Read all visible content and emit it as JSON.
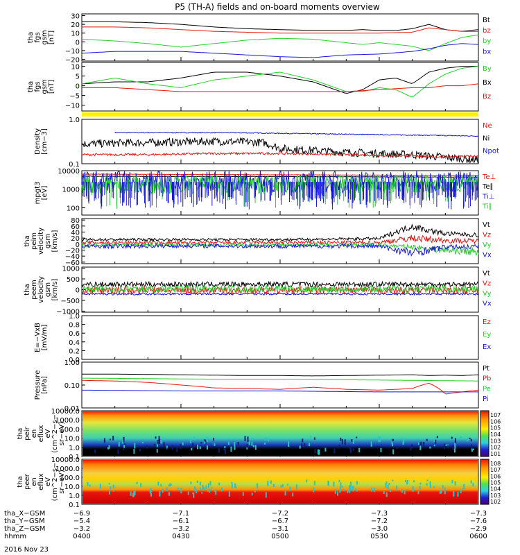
{
  "title": "P5 (TH-A) fields and on-board moments overview",
  "footer_date": "2016 Nov 23",
  "colors": {
    "black": "#000000",
    "red": "#e8150f",
    "green": "#22d02a",
    "blue": "#1515d8",
    "yellow": "#fff200"
  },
  "chart_data": [
    {
      "type": "line",
      "panel": 1,
      "ylabel": [
        "tha",
        "fgs",
        "gsm",
        "[nT]"
      ],
      "yticks": [
        "30",
        "20",
        "10",
        "0",
        "−10",
        "−20"
      ],
      "ylim": [
        -22,
        32
      ],
      "legend": [
        {
          "label": "Bt",
          "color": "black"
        },
        {
          "label": "bz",
          "color": "red"
        },
        {
          "label": "by",
          "color": "green"
        },
        {
          "label": "bx",
          "color": "blue"
        }
      ],
      "series": [
        {
          "name": "Bt",
          "color": "black",
          "x": [
            0,
            10,
            20,
            30,
            40,
            50,
            60,
            70,
            80,
            85,
            90,
            95,
            100,
            105,
            110,
            115,
            120
          ],
          "y": [
            23,
            23,
            22,
            20,
            17,
            15,
            14,
            13,
            13,
            14,
            13,
            13,
            15,
            20,
            14,
            12,
            14
          ]
        },
        {
          "name": "bz",
          "color": "red",
          "x": [
            0,
            10,
            20,
            30,
            40,
            50,
            60,
            70,
            80,
            90,
            100,
            105,
            110,
            115,
            120
          ],
          "y": [
            17,
            17,
            16,
            14,
            12,
            11,
            10,
            10,
            10,
            10,
            11,
            16,
            14,
            12,
            12
          ]
        },
        {
          "name": "by",
          "color": "green",
          "x": [
            0,
            10,
            20,
            30,
            40,
            50,
            60,
            70,
            80,
            85,
            90,
            95,
            100,
            105,
            110,
            115,
            120
          ],
          "y": [
            3,
            1,
            -2,
            -6,
            -2,
            2,
            4,
            3,
            -1,
            -3,
            -1,
            -3,
            -5,
            -10,
            -2,
            5,
            8
          ]
        },
        {
          "name": "bx",
          "color": "blue",
          "x": [
            0,
            10,
            20,
            30,
            40,
            50,
            60,
            70,
            80,
            90,
            100,
            105,
            110,
            115,
            120
          ],
          "y": [
            -13,
            -11,
            -11,
            -11,
            -13,
            -15,
            -17,
            -18,
            -15,
            -14,
            -11,
            -8,
            -4,
            -2,
            -3
          ]
        }
      ]
    },
    {
      "type": "line",
      "panel": 2,
      "ylabel": [
        "tha",
        "fgs",
        "gsm",
        "[nT]"
      ],
      "yticks": [
        "10",
        "5",
        "0",
        "−5",
        "−10"
      ],
      "ylim": [
        -13,
        12
      ],
      "legend": [
        {
          "label": "By",
          "color": "green"
        },
        {
          "label": "Bx",
          "color": "black"
        },
        {
          "label": "Bz",
          "color": "red"
        }
      ],
      "series": [
        {
          "name": "Bx",
          "color": "black",
          "x": [
            0,
            10,
            20,
            30,
            40,
            50,
            60,
            70,
            80,
            85,
            90,
            95,
            100,
            105,
            110,
            115,
            120
          ],
          "y": [
            1,
            2,
            2,
            4,
            7,
            7,
            5,
            2,
            -4,
            -2,
            3,
            4,
            1,
            7,
            9,
            10,
            10
          ]
        },
        {
          "name": "By",
          "color": "green",
          "x": [
            0,
            10,
            20,
            30,
            40,
            50,
            60,
            70,
            80,
            85,
            90,
            95,
            100,
            105,
            110,
            115,
            120
          ],
          "y": [
            1,
            4,
            1,
            -1,
            3,
            5,
            7,
            3,
            -3,
            -3,
            -1,
            -2,
            -6,
            1,
            6,
            9,
            10
          ]
        },
        {
          "name": "Bz",
          "color": "red",
          "x": [
            0,
            10,
            20,
            30,
            40,
            50,
            60,
            70,
            80,
            90,
            100,
            105,
            110,
            115,
            120
          ],
          "y": [
            -1,
            -1,
            -2,
            -3,
            -3,
            -3,
            -3,
            -3,
            -3,
            -2,
            -1,
            -1,
            0,
            0,
            1
          ]
        }
      ]
    },
    {
      "type": "line",
      "panel": 3,
      "ylabel": [
        "Density",
        "[cm−3]"
      ],
      "yticks": [
        "1.0",
        "0.1"
      ],
      "ylim": [
        0.1,
        1.0
      ],
      "log": true,
      "legend": [
        {
          "label": "Ne",
          "color": "red"
        },
        {
          "label": "Ni",
          "color": "black"
        },
        {
          "label": "Npot",
          "color": "blue"
        }
      ],
      "series": [
        {
          "name": "Npot",
          "color": "blue",
          "x": [
            10,
            35,
            45,
            120
          ],
          "y": [
            0.5,
            0.5,
            0.5,
            0.42
          ]
        },
        {
          "name": "Ni",
          "color": "black",
          "x": [
            0,
            20,
            40,
            55,
            60,
            80,
            100,
            110,
            120
          ],
          "y": [
            0.28,
            0.3,
            0.32,
            0.3,
            0.22,
            0.18,
            0.16,
            0.14,
            0.12
          ]
        },
        {
          "name": "Ne",
          "color": "red",
          "x": [
            0,
            20,
            40,
            60,
            80,
            100,
            110,
            120
          ],
          "y": [
            0.16,
            0.16,
            0.17,
            0.17,
            0.16,
            0.15,
            0.14,
            0.15
          ]
        }
      ]
    },
    {
      "type": "line",
      "panel": 4,
      "ylabel": [
        "mpgt3",
        "[eV]"
      ],
      "yticks": [
        "10000",
        "1000",
        "100"
      ],
      "ylim": [
        40,
        10000
      ],
      "log": true,
      "legend": [
        {
          "label": "Te⊥",
          "color": "red"
        },
        {
          "label": "Te∥",
          "color": "black"
        },
        {
          "label": "Ti⊥",
          "color": "blue"
        },
        {
          "label": "Ti∥",
          "color": "green"
        }
      ],
      "series": [
        {
          "name": "Te⊥",
          "color": "red",
          "x": [
            0,
            60,
            120
          ],
          "y": [
            6500,
            6000,
            5500
          ]
        },
        {
          "name": "Te∥",
          "color": "black",
          "x": [
            0,
            60,
            120
          ],
          "y": [
            5000,
            4800,
            4500
          ]
        },
        {
          "name": "Ti⊥",
          "color": "blue",
          "x": [
            0,
            120
          ],
          "y": [
            2500,
            2500
          ]
        },
        {
          "name": "Ti∥",
          "color": "green",
          "x": [
            0,
            120
          ],
          "y": [
            1800,
            1800
          ]
        }
      ]
    },
    {
      "type": "line",
      "panel": 5,
      "ylabel": [
        "tha",
        "peim",
        "velocity",
        "gsm",
        "[km/s]"
      ],
      "yticks": [
        "80",
        "60",
        "40",
        "20",
        "0",
        "−20",
        "−40",
        "−60"
      ],
      "ylim": [
        -65,
        85
      ],
      "legend": [
        {
          "label": "Vt",
          "color": "black"
        },
        {
          "label": "Vz",
          "color": "red"
        },
        {
          "label": "Vy",
          "color": "green"
        },
        {
          "label": "Vx",
          "color": "blue"
        }
      ],
      "series": [
        {
          "name": "Vt",
          "color": "black",
          "x": [
            0,
            30,
            60,
            90,
            95,
            100,
            105,
            110,
            120
          ],
          "y": [
            15,
            15,
            15,
            18,
            40,
            60,
            45,
            35,
            30
          ]
        },
        {
          "name": "Vz",
          "color": "red",
          "x": [
            0,
            30,
            60,
            90,
            100,
            110,
            120
          ],
          "y": [
            5,
            4,
            5,
            5,
            20,
            12,
            10
          ]
        },
        {
          "name": "Vy",
          "color": "green",
          "x": [
            0,
            30,
            60,
            90,
            100,
            110,
            120
          ],
          "y": [
            -3,
            -2,
            -3,
            -3,
            -10,
            -20,
            -25
          ]
        },
        {
          "name": "Vx",
          "color": "blue",
          "x": [
            0,
            30,
            60,
            90,
            100,
            110,
            120
          ],
          "y": [
            -8,
            -6,
            -7,
            -7,
            -30,
            -10,
            -8
          ]
        }
      ]
    },
    {
      "type": "line",
      "panel": 6,
      "ylabel": [
        "tha",
        "peem",
        "velocity",
        "gsm",
        "[km/s]"
      ],
      "yticks": [
        "1000",
        "500",
        "0",
        "−500",
        "−1000"
      ],
      "ylim": [
        -1050,
        1050
      ],
      "legend": [
        {
          "label": "Vt",
          "color": "black"
        },
        {
          "label": "Vz",
          "color": "red"
        },
        {
          "label": "Vy",
          "color": "green"
        },
        {
          "label": "Vx",
          "color": "blue"
        }
      ],
      "series": [
        {
          "name": "Vt",
          "color": "black",
          "x": [
            0,
            120
          ],
          "y": [
            250,
            250
          ]
        },
        {
          "name": "Vz",
          "color": "red",
          "x": [
            0,
            120
          ],
          "y": [
            -30,
            -30
          ]
        },
        {
          "name": "Vy",
          "color": "green",
          "x": [
            0,
            120
          ],
          "y": [
            30,
            30
          ]
        },
        {
          "name": "Vx",
          "color": "blue",
          "x": [
            0,
            120
          ],
          "y": [
            -200,
            -200
          ]
        }
      ]
    },
    {
      "type": "line",
      "panel": 7,
      "ylabel": [
        "E=−VxB",
        "[mV/m]"
      ],
      "yticks": [
        "1.0",
        "0.8",
        "0.6",
        "0.4",
        "0.2",
        "0.0"
      ],
      "ylim": [
        0,
        1
      ],
      "legend": [
        {
          "label": "Ez",
          "color": "red"
        },
        {
          "label": "Ey",
          "color": "green"
        },
        {
          "label": "Ex",
          "color": "blue"
        }
      ],
      "series": []
    },
    {
      "type": "line",
      "panel": 8,
      "ylabel": [
        "Pressure",
        "[nPa]"
      ],
      "yticks": [
        "1.00",
        "0.10",
        "0.01"
      ],
      "ylim": [
        0.01,
        1.0
      ],
      "log": true,
      "legend": [
        {
          "label": "Pt",
          "color": "black"
        },
        {
          "label": "Pb",
          "color": "red"
        },
        {
          "label": "Pe",
          "color": "green"
        },
        {
          "label": "Pi",
          "color": "blue"
        }
      ],
      "series": [
        {
          "name": "Pt",
          "color": "black",
          "x": [
            0,
            10,
            20,
            30,
            40,
            50,
            60,
            70,
            80,
            90,
            100,
            105,
            110,
            115,
            120
          ],
          "y": [
            0.3,
            0.3,
            0.29,
            0.28,
            0.27,
            0.26,
            0.26,
            0.25,
            0.26,
            0.27,
            0.28,
            0.26,
            0.27,
            0.26,
            0.28
          ]
        },
        {
          "name": "Pe",
          "color": "green",
          "x": [
            0,
            20,
            40,
            60,
            80,
            100,
            120
          ],
          "y": [
            0.2,
            0.19,
            0.18,
            0.18,
            0.17,
            0.16,
            0.15
          ]
        },
        {
          "name": "Pb",
          "color": "red",
          "x": [
            0,
            10,
            20,
            30,
            40,
            50,
            60,
            70,
            80,
            90,
            100,
            105,
            108,
            110,
            115,
            120
          ],
          "y": [
            0.16,
            0.15,
            0.13,
            0.1,
            0.075,
            0.07,
            0.065,
            0.08,
            0.065,
            0.06,
            0.07,
            0.12,
            0.07,
            0.04,
            0.05,
            0.06
          ]
        },
        {
          "name": "Pi",
          "color": "blue",
          "x": [
            0,
            30,
            60,
            90,
            120
          ],
          "y": [
            0.06,
            0.055,
            0.055,
            0.05,
            0.05
          ]
        }
      ]
    },
    {
      "type": "heatmap",
      "panel": 9,
      "ylabel": [
        "tha",
        "peir",
        "en",
        "eflux",
        "eV",
        "(cm^2−s−",
        "sr−eV)"
      ],
      "yticks": [
        "10000.0",
        "1000.0",
        "100.0",
        "10.0",
        "1.0",
        "0.1"
      ],
      "colorbar_label": "[eV/(cm^2−s−sr−eV)] (All Qs)",
      "colorbar_ticks": [
        "10^7",
        "10^6",
        "10^5",
        "10^4",
        "10^3",
        "10^2",
        "10^1"
      ]
    },
    {
      "type": "heatmap",
      "panel": 10,
      "ylabel": [
        "tha",
        "peer",
        "en",
        "eflux",
        "eV",
        "(cm^2−s−",
        "sr−eV)"
      ],
      "yticks": [
        "10000.0",
        "1000.0",
        "100.0",
        "10.0",
        "1.0",
        "0.1"
      ],
      "colorbar_label": "[eV/(cm^2−s−sr−eV)] (All Qs)",
      "colorbar_ticks": [
        "10^8",
        "10^7",
        "10^6",
        "10^5",
        "10^4",
        "10^3",
        "10^2"
      ]
    }
  ],
  "x_axis": {
    "rows": [
      {
        "label": "tha_X−GSM",
        "values": [
          "−6.9",
          "−7.1",
          "−7.2",
          "−7.3",
          "−7.3"
        ]
      },
      {
        "label": "tha_Y−GSM",
        "values": [
          "−5.4",
          "−6.1",
          "−6.7",
          "−7.2",
          "−7.6"
        ]
      },
      {
        "label": "tha_Z−GSM",
        "values": [
          "−3.2",
          "−3.2",
          "−3.1",
          "−3.0",
          "−2.9"
        ]
      },
      {
        "label": "hhmm",
        "values": [
          "0400",
          "0430",
          "0500",
          "0530",
          "0600"
        ]
      }
    ]
  }
}
